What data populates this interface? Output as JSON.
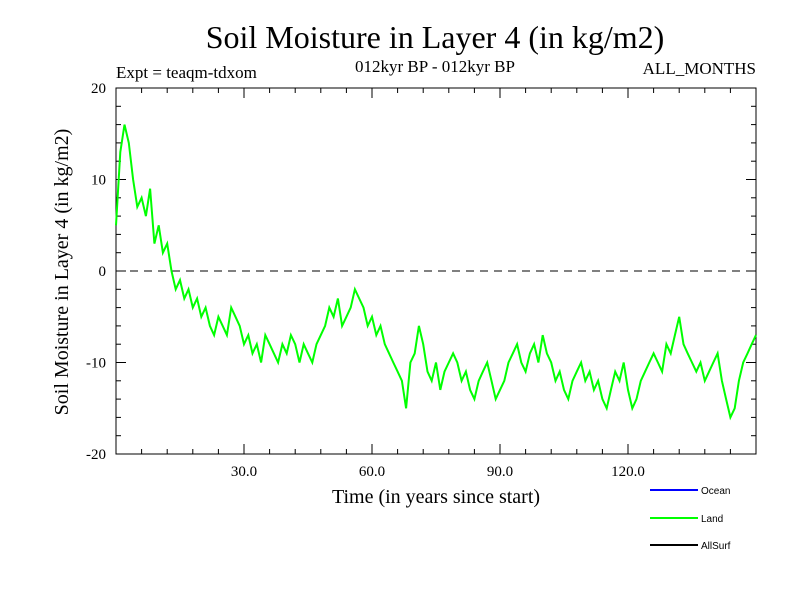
{
  "chart_data": {
    "type": "line",
    "title": "Soil Moisture in Layer 4 (in kg/m2)",
    "subtitle_left": "Expt = teaqm-tdxom",
    "subtitle_center": "012kyr BP - 012kyr BP",
    "subtitle_right": "ALL_MONTHS",
    "xlabel": "Time (in years since start)",
    "ylabel": "Soil Moisture in Layer 4 (in kg/m2)",
    "xlim": [
      0,
      150
    ],
    "ylim": [
      -20,
      20
    ],
    "x_ticks": [
      30,
      60,
      90,
      120
    ],
    "x_tick_labels": [
      "30.0",
      "60.0",
      "90.0",
      "120.0"
    ],
    "y_ticks": [
      -20,
      -10,
      0,
      10,
      20
    ],
    "y_tick_labels": [
      "-20",
      "-10",
      "0",
      "10",
      "20"
    ],
    "zero_line": "dashed",
    "legend_position": "bottom-right",
    "series": [
      {
        "name": "Ocean",
        "color": "#0000ff",
        "values": []
      },
      {
        "name": "Land",
        "color": "#00ff00",
        "x": [
          0,
          1,
          2,
          3,
          4,
          5,
          6,
          7,
          8,
          9,
          10,
          11,
          12,
          13,
          14,
          15,
          16,
          17,
          18,
          19,
          20,
          21,
          22,
          23,
          24,
          25,
          26,
          27,
          28,
          29,
          30,
          31,
          32,
          33,
          34,
          35,
          36,
          37,
          38,
          39,
          40,
          41,
          42,
          43,
          44,
          45,
          46,
          47,
          48,
          49,
          50,
          51,
          52,
          53,
          54,
          55,
          56,
          57,
          58,
          59,
          60,
          61,
          62,
          63,
          64,
          65,
          66,
          67,
          68,
          69,
          70,
          71,
          72,
          73,
          74,
          75,
          76,
          77,
          78,
          79,
          80,
          81,
          82,
          83,
          84,
          85,
          86,
          87,
          88,
          89,
          90,
          91,
          92,
          93,
          94,
          95,
          96,
          97,
          98,
          99,
          100,
          101,
          102,
          103,
          104,
          105,
          106,
          107,
          108,
          109,
          110,
          111,
          112,
          113,
          114,
          115,
          116,
          117,
          118,
          119,
          120,
          121,
          122,
          123,
          124,
          125,
          126,
          127,
          128,
          129,
          130,
          131,
          132,
          133,
          134,
          135,
          136,
          137,
          138,
          139,
          140,
          141,
          142,
          143,
          144,
          145,
          146,
          147,
          148,
          149,
          150
        ],
        "values": [
          5,
          13,
          16,
          14,
          10,
          7,
          8,
          6,
          9,
          3,
          5,
          2,
          3,
          0,
          -2,
          -1,
          -3,
          -2,
          -4,
          -3,
          -5,
          -4,
          -6,
          -7,
          -5,
          -6,
          -7,
          -4,
          -5,
          -6,
          -8,
          -7,
          -9,
          -8,
          -10,
          -7,
          -8,
          -9,
          -10,
          -8,
          -9,
          -7,
          -8,
          -10,
          -8,
          -9,
          -10,
          -8,
          -7,
          -6,
          -4,
          -5,
          -3,
          -6,
          -5,
          -4,
          -2,
          -3,
          -4,
          -6,
          -5,
          -7,
          -6,
          -8,
          -9,
          -10,
          -11,
          -12,
          -15,
          -10,
          -9,
          -6,
          -8,
          -11,
          -12,
          -10,
          -13,
          -11,
          -10,
          -9,
          -10,
          -12,
          -11,
          -13,
          -14,
          -12,
          -11,
          -10,
          -12,
          -14,
          -13,
          -12,
          -10,
          -9,
          -8,
          -10,
          -11,
          -9,
          -8,
          -10,
          -7,
          -9,
          -10,
          -12,
          -11,
          -13,
          -14,
          -12,
          -11,
          -10,
          -12,
          -11,
          -13,
          -12,
          -14,
          -15,
          -13,
          -11,
          -12,
          -10,
          -13,
          -15,
          -14,
          -12,
          -11,
          -10,
          -9,
          -10,
          -11,
          -8,
          -9,
          -7,
          -5,
          -8,
          -9,
          -10,
          -11,
          -10,
          -12,
          -11,
          -10,
          -9,
          -12,
          -14,
          -16,
          -15,
          -12,
          -10,
          -9,
          -8,
          -7
        ]
      },
      {
        "name": "AllSurf",
        "color": "#000000",
        "values": []
      }
    ]
  }
}
